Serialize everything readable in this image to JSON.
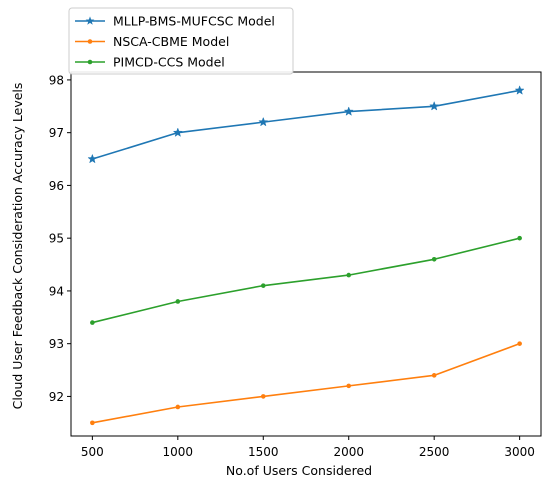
{
  "chart_data": {
    "type": "line",
    "title": "",
    "xlabel": "No.of Users Considered",
    "ylabel": "Cloud User Feedback Consideration Accuracy Levels",
    "x": [
      500,
      1000,
      1500,
      2000,
      2500,
      3000
    ],
    "xticks": [
      "500",
      "1000",
      "1500",
      "2000",
      "2500",
      "3000"
    ],
    "yticks": [
      "92",
      "93",
      "94",
      "95",
      "96",
      "97",
      "98"
    ],
    "ylim": [
      91.25,
      98.15
    ],
    "xlim": [
      375,
      3125
    ],
    "grid": false,
    "legend_position": "top-left",
    "series": [
      {
        "name": "MLLP-BMS-MUFCSC Model",
        "values": [
          96.5,
          97.0,
          97.2,
          97.4,
          97.5,
          97.8
        ],
        "color": "#1f77b4",
        "marker": "star"
      },
      {
        "name": "NSCA-CBME Model",
        "values": [
          91.5,
          91.8,
          92.0,
          92.2,
          92.4,
          93.0
        ],
        "color": "#ff7f0e",
        "marker": "dot"
      },
      {
        "name": "PIMCD-CCS Model",
        "values": [
          93.4,
          93.8,
          94.1,
          94.3,
          94.6,
          95.0
        ],
        "color": "#2ca02c",
        "marker": "dot"
      }
    ]
  }
}
